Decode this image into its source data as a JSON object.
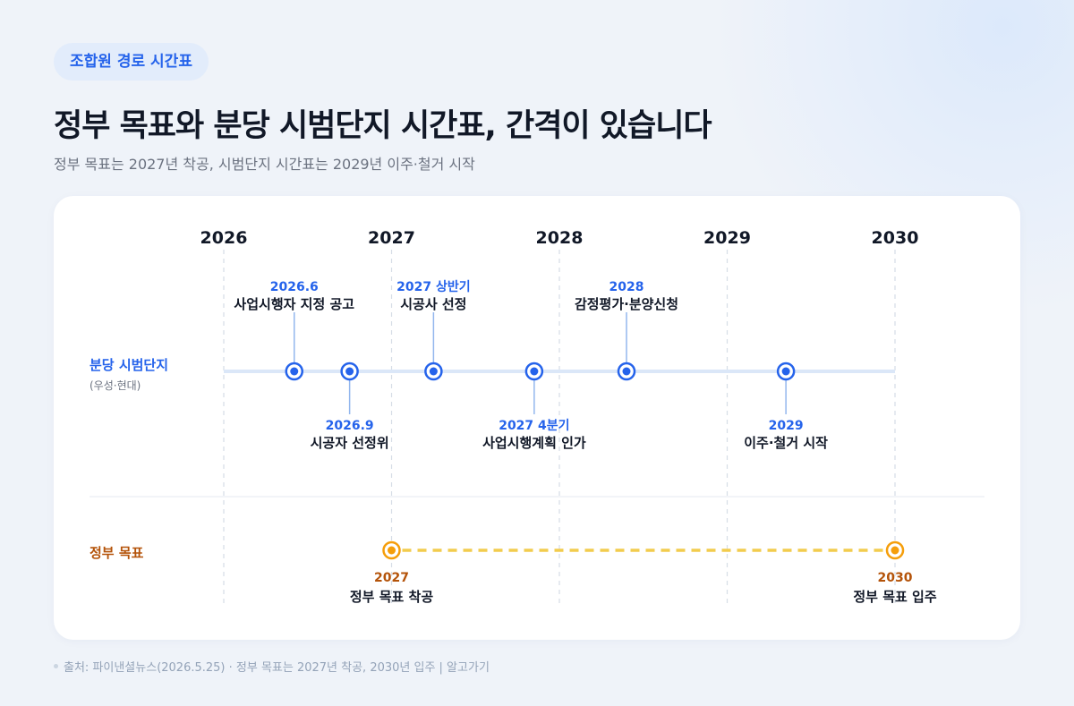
{
  "badge": "조합원 경로 시간표",
  "title": "정부 목표와 분당 시범단지 시간표, 간격이 있습니다",
  "subtitle": "정부 목표는 2027년 착공, 시범단지 시간표는 2029년 이주·철거 시작",
  "footer": "출처: 파이낸셜뉴스(2026.5.25) · 정부 목표는 2027년 착공, 2030년 입주 | 알고가기",
  "colors": {
    "blue": "#2563eb",
    "orange": "#f59e0b",
    "orange_text": "#b45309",
    "track": "#dbe7f8",
    "dash": "#f2cc4d"
  },
  "chart_data": {
    "type": "timeline",
    "years": [
      "2026",
      "2027",
      "2028",
      "2029",
      "2030"
    ],
    "year_values": [
      2026,
      2027,
      2028,
      2029,
      2030
    ],
    "lanes": [
      {
        "name": "분당 시범단지",
        "sub": "(우성·현대)",
        "events": [
          {
            "t": 2026.42,
            "date": "2026.6",
            "label": "사업시행자 지정 공고",
            "side": "above"
          },
          {
            "t": 2026.75,
            "date": "2026.9",
            "label": "시공자 선정위",
            "side": "below"
          },
          {
            "t": 2027.25,
            "date": "2027 상반기",
            "label": "시공사 선정",
            "side": "above"
          },
          {
            "t": 2027.85,
            "date": "2027 4분기",
            "label": "사업시행계획 인가",
            "side": "below"
          },
          {
            "t": 2028.4,
            "date": "2028",
            "label": "감정평가·분양신청",
            "side": "above"
          },
          {
            "t": 2029.35,
            "date": "2029",
            "label": "이주·철거 시작",
            "side": "below"
          }
        ]
      },
      {
        "name": "정부 목표",
        "events": [
          {
            "t": 2027,
            "date": "2027",
            "label": "정부 목표 착공",
            "side": "below"
          },
          {
            "t": 2030,
            "date": "2030",
            "label": "정부 목표 입주",
            "side": "below"
          }
        ]
      }
    ]
  }
}
